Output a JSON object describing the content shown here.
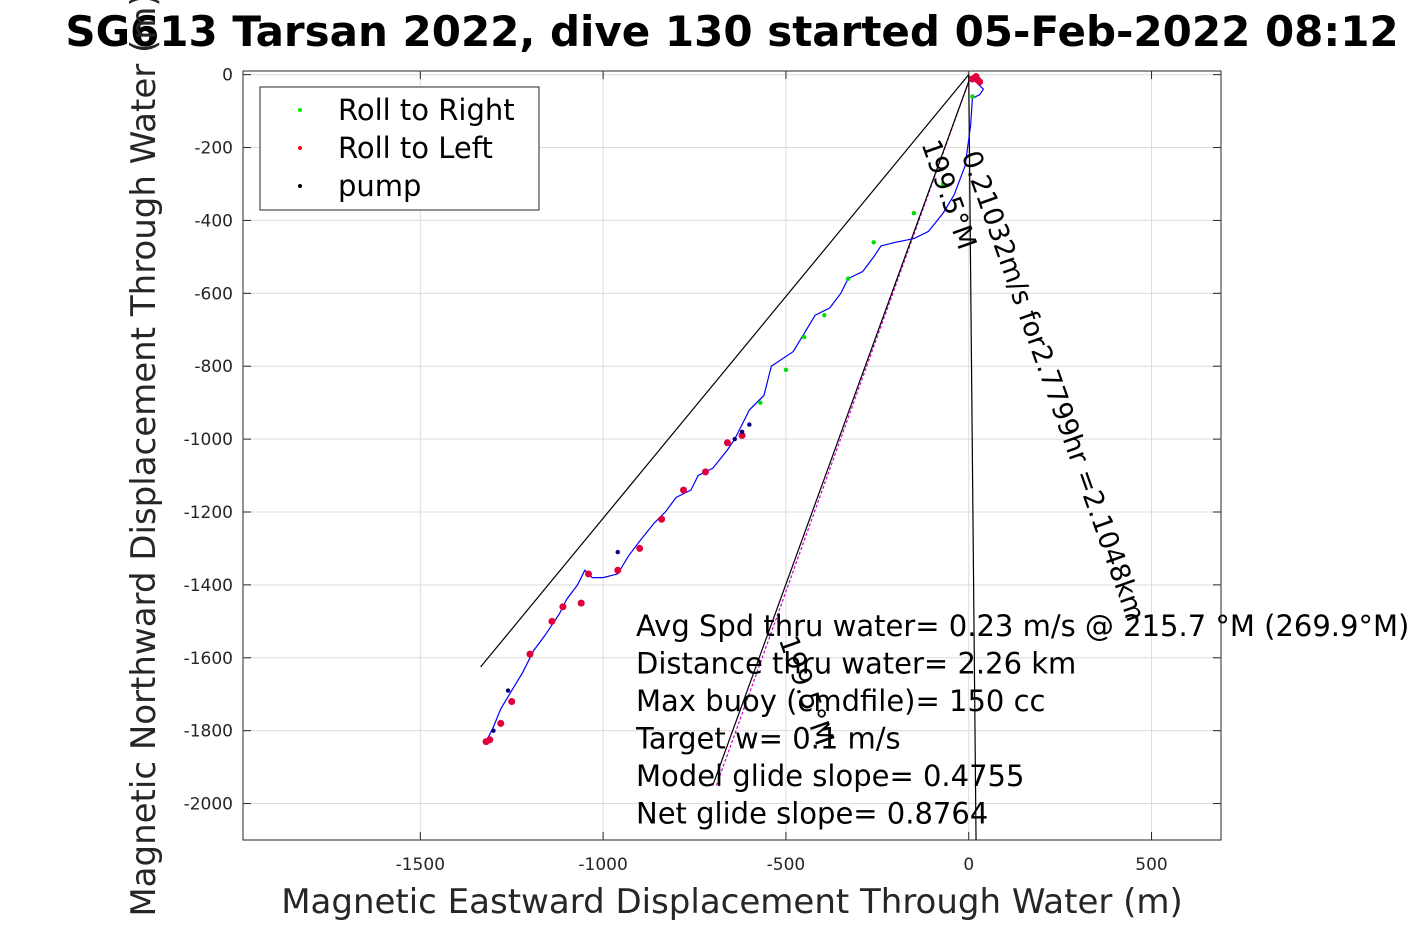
{
  "chart_data": {
    "type": "scatter",
    "title": "SG613 Tarsan 2022, dive 130 started 05-Feb-2022 08:12",
    "xlabel": "Magnetic Eastward Displacement Through Water (m)",
    "ylabel": "Magnetic Northward Displacement Through Water (m)",
    "xlim": [
      -1985,
      690
    ],
    "ylim": [
      -2100,
      10
    ],
    "xticks": [
      -1500,
      -1000,
      -500,
      0,
      500
    ],
    "yticks": [
      0,
      -200,
      -400,
      -600,
      -800,
      -1000,
      -1200,
      -1400,
      -1600,
      -1800,
      -2000
    ],
    "grid": true,
    "legend_position": "top-left",
    "legend": [
      {
        "name": "Roll to Right",
        "color": "#00ee00",
        "marker": "dot"
      },
      {
        "name": "Roll to Left",
        "color": "#ff0000",
        "marker": "dot"
      },
      {
        "name": "pump",
        "color": "#000000",
        "marker": "dot"
      }
    ],
    "series": [
      {
        "name": "track",
        "color": "#0000ff",
        "x": [
          25,
          40,
          30,
          10,
          5,
          -10,
          -40,
          -70,
          -110,
          -150,
          -200,
          -240,
          -260,
          -290,
          -330,
          -350,
          -380,
          -420,
          -480,
          -540,
          -560,
          -600,
          -620,
          -640,
          -660,
          -700,
          -740,
          -760,
          -800,
          -830,
          -860,
          -900,
          -930,
          -960,
          -1000,
          -1030,
          -1050,
          -1070,
          -1100,
          -1120,
          -1160,
          -1190,
          -1220,
          -1250,
          -1280,
          -1300,
          -1320
        ],
        "y": [
          -25,
          -40,
          -55,
          -65,
          -140,
          -250,
          -330,
          -380,
          -430,
          -450,
          -460,
          -470,
          -500,
          -540,
          -560,
          -600,
          -640,
          -660,
          -760,
          -800,
          -880,
          -920,
          -960,
          -1000,
          -1030,
          -1080,
          -1100,
          -1140,
          -1160,
          -1200,
          -1230,
          -1280,
          -1320,
          -1370,
          -1380,
          -1380,
          -1360,
          -1400,
          -1440,
          -1480,
          -1540,
          -1580,
          -1640,
          -1690,
          -1740,
          -1790,
          -1830
        ]
      }
    ],
    "points": {
      "right": {
        "x": [
          10,
          -70,
          -150,
          -260,
          -330,
          -395,
          -450,
          -500,
          -570
        ],
        "y": [
          -60,
          -300,
          -380,
          -460,
          -560,
          -660,
          -720,
          -810,
          -900
        ]
      },
      "left": {
        "x": [
          15,
          25,
          30,
          20,
          10,
          -620,
          -660,
          -720,
          -780,
          -840,
          -900,
          -960,
          -1040,
          -1060,
          -1110,
          -1140,
          -1200,
          -1250,
          -1280,
          -1310,
          -1320
        ],
        "y": [
          -10,
          -15,
          -20,
          -5,
          -12,
          -990,
          -1010,
          -1090,
          -1140,
          -1220,
          -1300,
          -1360,
          -1370,
          -1450,
          -1460,
          -1500,
          -1590,
          -1720,
          -1780,
          -1825,
          -1830
        ]
      },
      "pump": {
        "x": [
          -600,
          -620,
          -640,
          -960,
          -1260,
          -1300
        ],
        "y": [
          -960,
          -980,
          -1000,
          -1310,
          -1690,
          -1800
        ]
      }
    },
    "lines": [
      {
        "x": [
          0,
          -1335
        ],
        "y": [
          0,
          -1625
        ],
        "color": "#000000"
      },
      {
        "x": [
          5,
          -690
        ],
        "y": [
          -5,
          -1950
        ],
        "color": "#cc00cc",
        "dashed": true
      },
      {
        "x": [
          5,
          -700
        ],
        "y": [
          -5,
          -1950
        ],
        "color": "#000000"
      },
      {
        "x": [
          0,
          20
        ],
        "y": [
          0,
          -2100
        ],
        "color": "#000000"
      }
    ],
    "rotated_labels": [
      {
        "text": "0.21032m/s for2.7799hr =2.1048km",
        "x": -20,
        "y": -220,
        "angle": 70.4
      },
      {
        "text": "199.5°M",
        "x": -130,
        "y": -190,
        "angle": 70.4
      },
      {
        "text": "199.5°M",
        "x": -520,
        "y": -1550,
        "angle": 70.4
      }
    ],
    "annotations": [
      "Avg Spd thru water=  0.23 m/s @ 215.7 °M (269.9°M)",
      "Distance thru water=  2.26 km",
      "Max buoy (cmdfile)= 150 cc",
      "Target w= 0.1 m/s",
      "Model glide slope= 0.4755",
      "Net glide slope= 0.8764"
    ],
    "annotation_anchor": {
      "x": -910,
      "y": -1540
    }
  }
}
